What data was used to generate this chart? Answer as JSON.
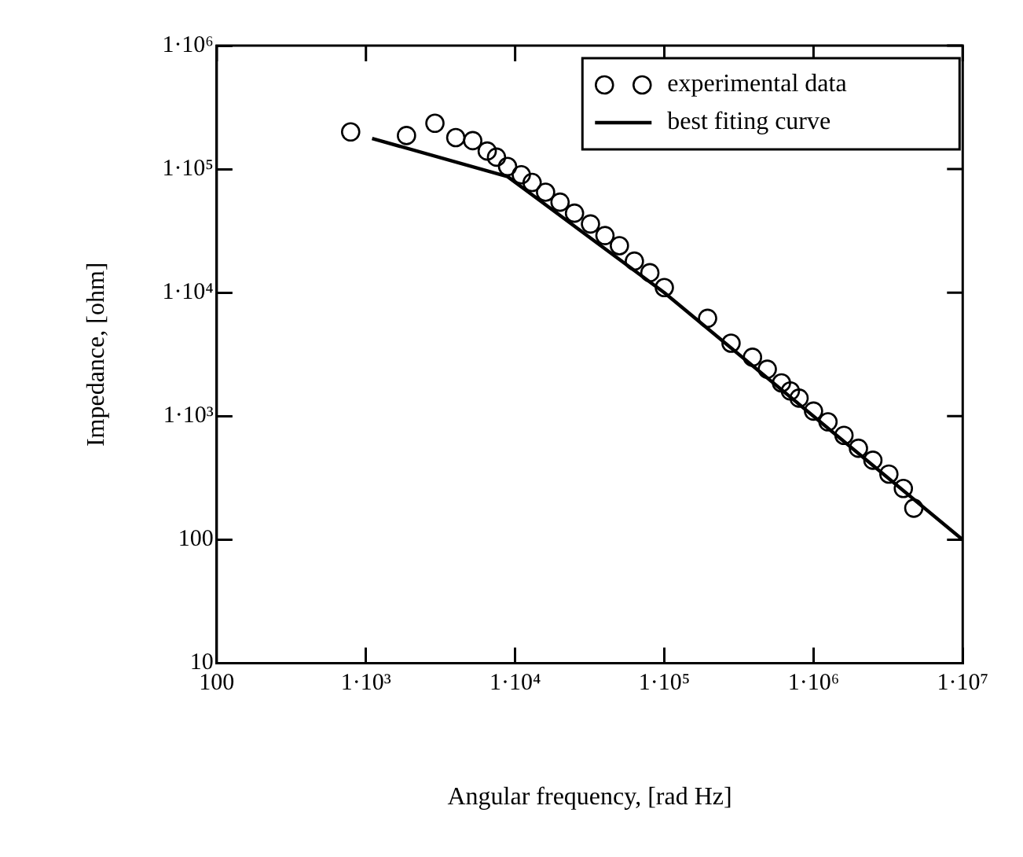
{
  "chart_data": {
    "type": "scatter",
    "xlabel": "Angular frequency, [rad Hz]",
    "ylabel": "Impedance, [ohm]",
    "log": "xy",
    "grid": false,
    "legend": "top right",
    "xlim": [
      100,
      10000000
    ],
    "ylim": [
      10,
      1000000
    ],
    "xticks": [
      100,
      {
        "value": 1000,
        "label": "1·10³"
      },
      {
        "value": 10000,
        "label": "1·10⁴"
      },
      {
        "value": 100000,
        "label": "1·10⁵"
      },
      {
        "value": 1000000,
        "label": "1·10⁶"
      },
      {
        "value": 10000000,
        "label": "1·10⁷"
      }
    ],
    "yticks": [
      10,
      100,
      {
        "value": 1000,
        "label": "1·10³"
      },
      {
        "value": 10000,
        "label": "1·10⁴"
      },
      {
        "value": 100000,
        "label": "1·10⁵"
      },
      {
        "value": 1000000,
        "label": "1·10⁶"
      }
    ],
    "series": [
      {
        "name": "experimental data",
        "type": "scatter",
        "marker": "circle",
        "color": "#000000",
        "x": [
          790,
          1870,
          2900,
          4000,
          5200,
          6500,
          7500,
          8900,
          11000,
          13000,
          16000,
          20000,
          25000,
          32000,
          40000,
          50000,
          63000,
          80000,
          100000,
          195000,
          280000,
          390000,
          490000,
          610000,
          700000,
          800000,
          1000000,
          1250000,
          1600000,
          2000000,
          2500000,
          3200000,
          4000000,
          4700000
        ],
        "values": [
          200000,
          187000,
          235000,
          180000,
          170000,
          140000,
          125000,
          105000,
          90000,
          78000,
          65000,
          54000,
          44000,
          36000,
          29000,
          24000,
          18000,
          14500,
          11000,
          6200,
          3900,
          3000,
          2400,
          1860,
          1600,
          1400,
          1100,
          900,
          700,
          550,
          440,
          340,
          260,
          180
        ]
      },
      {
        "name": "best fiting curve",
        "type": "line",
        "marker": "none",
        "line_style": "solid",
        "color": "#000000",
        "x": [
          1100,
          8900,
          100000,
          10000000
        ],
        "values": [
          177000,
          87000,
          10000,
          100
        ]
      }
    ]
  }
}
